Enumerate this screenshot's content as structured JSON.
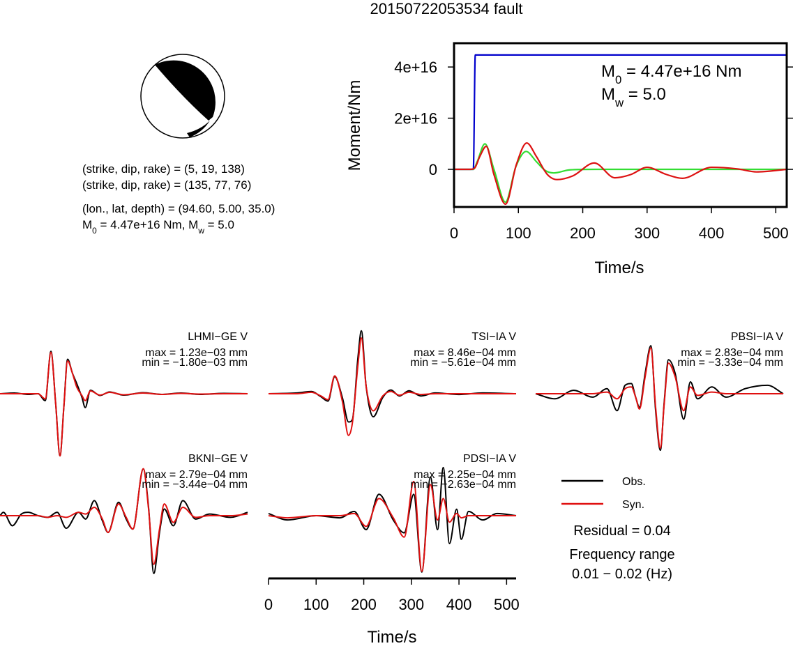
{
  "title": "20150722053534 fault",
  "focal_info": [
    "(strike, dip, rake) = (5, 19, 138)",
    "(strike, dip, rake) = (135, 77, 76)",
    "(lon., lat, depth) = (94.60, 5.00, 35.0)",
    [
      "M",
      "0",
      " = 4.47e+16 Nm, M",
      "w",
      " = 5.0"
    ]
  ],
  "chart_data": [
    {
      "type": "line",
      "x_label": "Time/s",
      "y_label": "Moment/Nm",
      "xlim": [
        0,
        517
      ],
      "xticks": [
        0,
        100,
        200,
        300,
        400,
        500
      ],
      "ylim": [
        -1.47e+16,
        4.93e+16
      ],
      "yticks": [
        0,
        {
          "value": 2e+16,
          "label": "2e+16"
        },
        {
          "value": 4e+16,
          "label": "4e+16"
        }
      ],
      "annotations": [
        [
          "M",
          "0",
          " = 4.47e+16 Nm"
        ],
        [
          "M",
          "w",
          " = 5.0"
        ]
      ],
      "series": [
        {
          "color": "#0000cc",
          "x": [
            0,
            30,
            33,
            517
          ],
          "values": [
            0,
            0,
            4.47e+16,
            4.47e+16
          ]
        },
        {
          "color": "#33dd33",
          "x": [
            0,
            30,
            36,
            48,
            62,
            80,
            96,
            112,
            128,
            142,
            155,
            180,
            220,
            517
          ],
          "values": [
            0,
            0,
            3000000000000000.0,
            1e+16,
            0,
            -1.28e+16,
            1000000000000000.0,
            7000000000000000.0,
            3000000000000000.0,
            -500000000000000.0,
            -1400000000000000.0,
            -200000000000000.0,
            0,
            0
          ]
        },
        {
          "color": "#dd1111",
          "x": [
            0,
            25,
            32,
            40,
            50,
            62,
            80,
            97,
            113,
            128,
            145,
            160,
            185,
            218,
            250,
            275,
            300,
            330,
            355,
            400,
            440,
            470,
            517
          ],
          "values": [
            0,
            0,
            500000000000000.0,
            5000000000000000.0,
            9000000000000000.0,
            -2000000000000000.0,
            -1.36e+16,
            2000000000000000.0,
            1.03e+16,
            5000000000000000.0,
            -2000000000000000.0,
            -4000000000000000.0,
            -2500000000000000.0,
            2500000000000000.0,
            -3300000000000000.0,
            -2000000000000000.0,
            800000000000000.0,
            -2000000000000000.0,
            -3500000000000000.0,
            800000000000000.0,
            200000000000000.0,
            -1000000000000000.0,
            0
          ]
        }
      ]
    },
    {
      "type": "waveforms",
      "x_label": "Time/s",
      "xlim": [
        0,
        520
      ],
      "xticks": [
        0,
        100,
        200,
        300,
        400,
        500
      ],
      "series": [
        {
          "name": "Obs.",
          "color": "#000000"
        },
        {
          "name": "Syn.",
          "color": "#e01010"
        }
      ],
      "residual": "Residual = 0.04",
      "frequency_title": "Frequency range",
      "frequency_range": "0.01 − 0.02 (Hz)",
      "panels": [
        {
          "name": "LHMI−GE V",
          "max_label": "max = 1.23e−03 mm",
          "min_label": "min = −1.80e−03 mm",
          "ylim": [
            -0.0018,
            0.00123
          ],
          "x": [
            0,
            30,
            60,
            80,
            95,
            107,
            117,
            126,
            134,
            142,
            152,
            161,
            172,
            179,
            190,
            210,
            230,
            260,
            300,
            340,
            380,
            420,
            470,
            520
          ],
          "values": [
            [
              0,
              2e-05,
              -2e-05,
              0,
              -0.0002,
              0.00123,
              -0.0003,
              -0.0018,
              -0.0004,
              0.001,
              0.0006,
              0.0003,
              -0.0001,
              -0.0004,
              0.0001,
              -5e-05,
              5e-05,
              -4e-05,
              3e-05,
              -2e-05,
              2e-05,
              -2e-05,
              1e-05,
              0
            ],
            [
              0,
              0,
              0,
              0,
              -0.00015,
              0.0012,
              -0.0003,
              -0.0018,
              -0.0004,
              0.00095,
              0.0006,
              0.0002,
              -5e-05,
              -0.0002,
              8e-05,
              -4e-05,
              4e-05,
              -3e-05,
              2e-05,
              -2e-05,
              1e-05,
              -1e-05,
              0,
              0
            ]
          ]
        },
        {
          "name": "TSI−IA V",
          "max_label": "max = 8.46e−04 mm",
          "min_label": "min = −5.61e−04 mm",
          "ylim": [
            -0.000561,
            0.000846
          ],
          "x": [
            0,
            60,
            90,
            110,
            125,
            139,
            155,
            168,
            176,
            188,
            195,
            205,
            220,
            240,
            257,
            275,
            295,
            320,
            350,
            400,
            450,
            520
          ],
          "values": [
            [
              0,
              1e-05,
              3e-05,
              -4e-05,
              -0.0001,
              0.00023,
              -5e-05,
              -0.00038,
              -0.00035,
              0.0005,
              0.000846,
              0.0001,
              -0.00031,
              -5e-05,
              5e-05,
              -3e-05,
              4e-05,
              -3e-05,
              1e-05,
              -1e-05,
              1e-05,
              0
            ],
            [
              0,
              0,
              2e-05,
              -3e-05,
              -8e-05,
              0.00024,
              -0.0001,
              -0.000561,
              -0.0004,
              0.0004,
              0.00075,
              0.0001,
              -0.00023,
              -3e-05,
              3e-05,
              -2e-05,
              2e-05,
              -1e-05,
              0,
              0,
              0,
              0
            ]
          ]
        },
        {
          "name": "PBSI−IA V",
          "max_label": "max = 2.83e−04 mm",
          "min_label": "min = −3.33e−04 mm",
          "ylim": [
            -0.000333,
            0.000283
          ],
          "x": [
            0,
            40,
            80,
            120,
            150,
            171,
            188,
            201,
            210,
            218,
            230,
            242,
            252,
            262,
            270,
            279,
            293,
            311,
            325,
            340,
            370,
            400,
            440,
            487,
            520
          ],
          "values": [
            [
              0,
              -3e-05,
              2e-05,
              -2e-05,
              3e-05,
              -0.0001,
              5e-05,
              6e-05,
              -2e-05,
              -8e-05,
              0.00012,
              0.000283,
              -0.0001,
              -0.000333,
              -5e-05,
              0.0002,
              0.00012,
              -0.00015,
              7e-05,
              -3e-05,
              4e-05,
              -2e-05,
              3e-05,
              5e-05,
              0
            ],
            [
              0,
              0,
              0,
              0,
              1e-05,
              -3e-05,
              3e-05,
              4e-05,
              -2e-05,
              -9e-05,
              0.0001,
              0.00027,
              -8e-05,
              -0.00032,
              -6e-05,
              0.00018,
              0.0001,
              -0.0001,
              4e-05,
              -1e-05,
              1e-05,
              0,
              0,
              0,
              0
            ]
          ]
        },
        {
          "name": "BKNI−GE V",
          "max_label": "max = 2.79e−04 mm",
          "min_label": "min = −3.44e−04 mm",
          "ylim": [
            -0.000344,
            0.000279
          ],
          "x": [
            0,
            7,
            26,
            45,
            59,
            80,
            100,
            120,
            139,
            165,
            180,
            198,
            215,
            227,
            249,
            265,
            279,
            301,
            312,
            323,
            335,
            345,
            364,
            384,
            411,
            440,
            484,
            520
          ],
          "values": [
            [
              0,
              2e-05,
              -6e-05,
              1e-05,
              2e-05,
              0,
              -1e-05,
              2e-05,
              -7.5e-05,
              2e-05,
              -2e-05,
              9e-05,
              -3e-05,
              -0.0001,
              8e-05,
              -2e-05,
              -8e-05,
              0.000279,
              5e-05,
              -0.000344,
              -0.0001,
              4e-05,
              -6e-05,
              9e-05,
              -2e-05,
              1e-05,
              -1e-05,
              2e-05
            ],
            [
              0,
              0,
              0,
              0,
              0,
              0,
              -1e-05,
              0,
              -1e-05,
              2e-05,
              1e-05,
              5e-05,
              -2e-05,
              -0.0001,
              7e-05,
              -1e-05,
              -8e-05,
              0.00028,
              4e-05,
              -0.00029,
              -8e-05,
              7e-05,
              -4e-05,
              5e-05,
              -1e-05,
              0,
              0,
              1e-05
            ]
          ]
        },
        {
          "name": "PDSI−IA V",
          "max_label": "max = 2.25e−04 mm",
          "min_label": "min = −2.63e−04 mm",
          "ylim": [
            -0.000263,
            0.000225
          ],
          "x": [
            0,
            40,
            100,
            150,
            180,
            205,
            232,
            262,
            285,
            305,
            322,
            340,
            355,
            367,
            380,
            395,
            405,
            420,
            450,
            480,
            520
          ],
          "values": [
            [
              1e-05,
              -2e-05,
              0,
              -1e-05,
              2e-05,
              -6.5e-05,
              0.0001,
              -2e-05,
              -8e-05,
              0.0001,
              -0.000263,
              0.00018,
              -6.5e-05,
              0.000225,
              -0.00013,
              3e-05,
              -0.00011,
              2e-05,
              -2e-05,
              1e-05,
              0
            ],
            [
              0,
              -1e-05,
              0,
              0,
              1e-05,
              -5e-05,
              8e-05,
              -1e-05,
              -0.0001,
              0.00016,
              -0.00026,
              0.000145,
              -2e-05,
              8e-05,
              -3e-05,
              1e-05,
              -1e-05,
              0,
              0,
              0,
              0
            ]
          ]
        }
      ]
    }
  ]
}
